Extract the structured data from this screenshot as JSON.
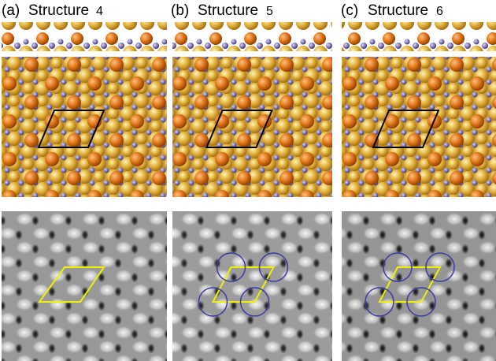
{
  "panels": [
    {
      "label": "(a)",
      "title": "Structure",
      "number": 4
    },
    {
      "label": "(b)",
      "title": "Structure",
      "number": 5
    },
    {
      "label": "(c)",
      "title": "Structure",
      "number": 6
    }
  ]
}
